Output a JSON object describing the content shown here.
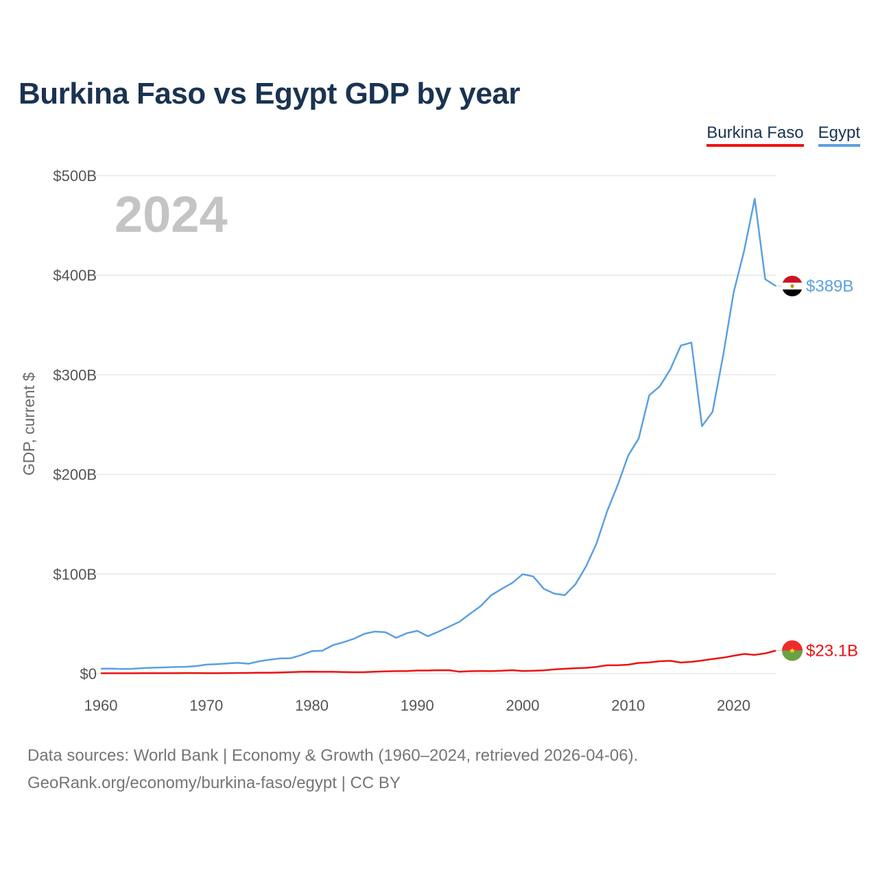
{
  "title": "Burkina Faso vs Egypt GDP by year",
  "legend": {
    "items": [
      {
        "label": "Burkina Faso",
        "color": "#ee1111"
      },
      {
        "label": "Egypt",
        "color": "#5aa0e1"
      }
    ]
  },
  "year_watermark": "2024",
  "footer": {
    "sources": "Data sources: World Bank | Economy & Growth (1960–2024, retrieved 2026-04-06).",
    "url": "GeoRank.org/economy/burkina-faso/egypt | CC BY"
  },
  "flags": {
    "egypt": {
      "name": "egypt-flag-icon",
      "colors": [
        "#ce1126",
        "#ffffff",
        "#000000"
      ],
      "emblem_color": "#c09300"
    },
    "burkina_faso": {
      "name": "burkina-faso-flag-icon",
      "colors": [
        "#ef2b2d",
        "#6ba144"
      ],
      "star_color": "#fcd116"
    }
  },
  "chart_data": {
    "type": "line",
    "title": "Burkina Faso vs Egypt GDP by year",
    "xlabel": "",
    "ylabel": "GDP, current $",
    "xlim": [
      1960,
      2024
    ],
    "ylim": [
      0,
      500
    ],
    "unit": "billions USD",
    "y_ticks": [
      {
        "value": 0,
        "label": "$0"
      },
      {
        "value": 100,
        "label": "$100B"
      },
      {
        "value": 200,
        "label": "$200B"
      },
      {
        "value": 300,
        "label": "$300B"
      },
      {
        "value": 400,
        "label": "$400B"
      },
      {
        "value": 500,
        "label": "$500B"
      }
    ],
    "x_ticks": [
      {
        "value": 1960,
        "label": "1960"
      },
      {
        "value": 1970,
        "label": "1970"
      },
      {
        "value": 1980,
        "label": "1980"
      },
      {
        "value": 1990,
        "label": "1990"
      },
      {
        "value": 2000,
        "label": "2000"
      },
      {
        "value": 2010,
        "label": "2010"
      },
      {
        "value": 2020,
        "label": "2020"
      }
    ],
    "grid": true,
    "x": [
      1960,
      1961,
      1962,
      1963,
      1964,
      1965,
      1966,
      1967,
      1968,
      1969,
      1970,
      1971,
      1972,
      1973,
      1974,
      1975,
      1976,
      1977,
      1978,
      1979,
      1980,
      1981,
      1982,
      1983,
      1984,
      1985,
      1986,
      1987,
      1988,
      1989,
      1990,
      1991,
      1992,
      1993,
      1994,
      1995,
      1996,
      1997,
      1998,
      1999,
      2000,
      2001,
      2002,
      2003,
      2004,
      2005,
      2006,
      2007,
      2008,
      2009,
      2010,
      2011,
      2012,
      2013,
      2014,
      2015,
      2016,
      2017,
      2018,
      2019,
      2020,
      2021,
      2022,
      2023,
      2024
    ],
    "series": [
      {
        "name": "Egypt",
        "color": "#5aa0e1",
        "end_label": "$389B",
        "values": [
          4.9,
          5.0,
          4.6,
          4.8,
          5.5,
          5.9,
          6.2,
          6.6,
          6.8,
          7.5,
          9.0,
          9.5,
          10.2,
          10.8,
          9.9,
          12.3,
          14.0,
          15.2,
          15.4,
          18.5,
          22.5,
          23.0,
          28.5,
          31.5,
          35.0,
          40.0,
          42.2,
          41.5,
          35.9,
          40.5,
          43.0,
          37.5,
          42.0,
          47.0,
          52.0,
          60.0,
          67.6,
          78.5,
          85.0,
          91.0,
          99.8,
          97.6,
          85.1,
          80.3,
          78.8,
          89.7,
          107.5,
          130.5,
          162.8,
          189.1,
          218.9,
          236.0,
          279.4,
          288.4,
          305.6,
          329.4,
          332.4,
          248.4,
          262.8,
          318.7,
          382.5,
          424.7,
          476.7,
          396.0,
          389.1
        ]
      },
      {
        "name": "Burkina Faso",
        "color": "#ee1111",
        "end_label": "$23.1B",
        "values": [
          0.33,
          0.35,
          0.36,
          0.37,
          0.38,
          0.39,
          0.4,
          0.43,
          0.45,
          0.48,
          0.39,
          0.43,
          0.52,
          0.59,
          0.66,
          0.87,
          0.89,
          1.11,
          1.44,
          1.76,
          1.93,
          1.79,
          1.76,
          1.6,
          1.4,
          1.45,
          1.94,
          2.25,
          2.49,
          2.5,
          3.1,
          3.1,
          3.38,
          3.43,
          1.88,
          2.38,
          2.58,
          2.45,
          2.81,
          3.42,
          2.61,
          2.81,
          3.21,
          4.21,
          4.84,
          5.46,
          5.81,
          6.76,
          8.35,
          8.35,
          8.98,
          10.7,
          11.2,
          12.4,
          12.8,
          11.1,
          11.8,
          13.1,
          14.7,
          16.0,
          17.9,
          19.7,
          18.8,
          20.3,
          23.1
        ]
      }
    ]
  }
}
